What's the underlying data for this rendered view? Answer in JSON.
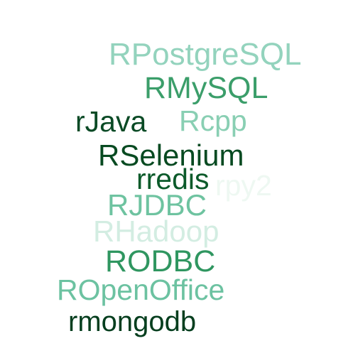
{
  "cloud": {
    "words": [
      {
        "key": "rpostgresql",
        "text": "RPostgreSQL",
        "color": "#93d3bd"
      },
      {
        "key": "rmysql",
        "text": "RMySQL",
        "color": "#3b9e6a"
      },
      {
        "key": "rjava",
        "text": "rJava",
        "color": "#0a4a25"
      },
      {
        "key": "rcpp",
        "text": "Rcpp",
        "color": "#89cfb3"
      },
      {
        "key": "rselenium",
        "text": "RSelenium",
        "color": "#074a21"
      },
      {
        "key": "rpy2",
        "text": "rpy2",
        "color": "#eef8f2"
      },
      {
        "key": "rredis",
        "text": "rredis",
        "color": "#0b5a2a"
      },
      {
        "key": "rjdbc",
        "text": "RJDBC",
        "color": "#6ec3a0"
      },
      {
        "key": "rhadoop",
        "text": "RHadoop",
        "color": "#d3ede2"
      },
      {
        "key": "rodbc",
        "text": "RODBC",
        "color": "#2f9660"
      },
      {
        "key": "ropenoffice",
        "text": "ROpenOffice",
        "color": "#6cc2a1"
      },
      {
        "key": "rmongodb",
        "text": "rmongodb",
        "color": "#053e1e"
      }
    ]
  }
}
